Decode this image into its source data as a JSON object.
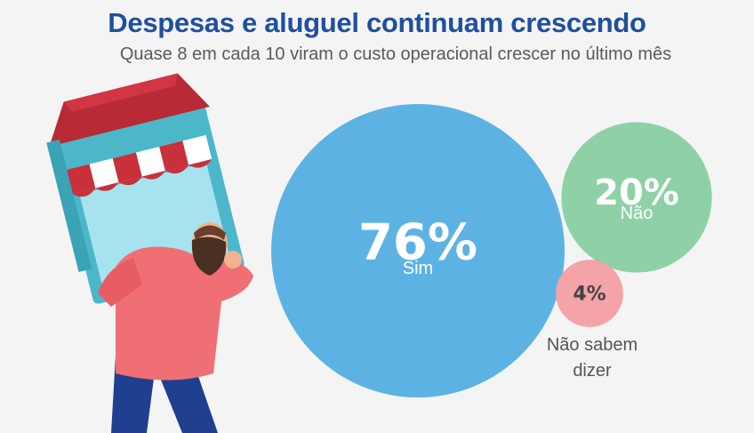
{
  "header": {
    "title": "Despesas e aluguel continuam crescendo",
    "subtitle": "Quase 8 em cada 10 viram o custo operacional crescer no último mês"
  },
  "illustration": {
    "description_icon": "man-carrying-storefront-icon"
  },
  "chart_data": {
    "type": "bubble",
    "title": "Despesas e aluguel continuam crescendo",
    "subtitle": "Quase 8 em cada 10 viram o custo operacional crescer no último mês",
    "unit": "%",
    "series": [
      {
        "name": "Sim",
        "value": 76,
        "label": "76%",
        "color": "#5cb3e3"
      },
      {
        "name": "Não",
        "value": 20,
        "label": "20%",
        "color": "#8fd1a7"
      },
      {
        "name": "Não sabem dizer",
        "value": 4,
        "label": "4%",
        "color": "#f4a3a8"
      }
    ]
  }
}
